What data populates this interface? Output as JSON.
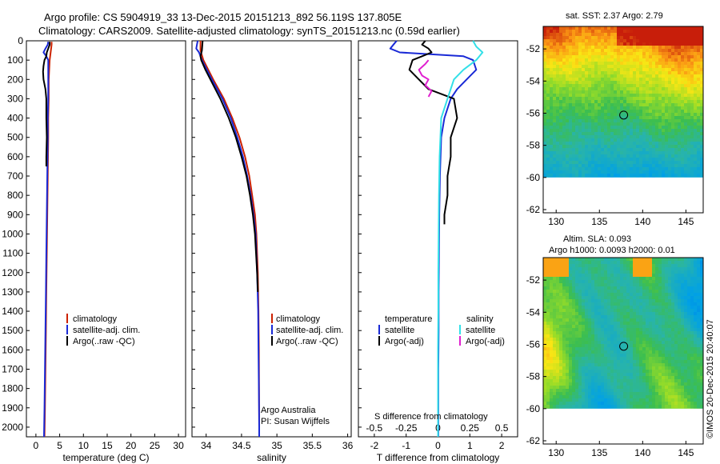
{
  "header": {
    "title_line1": "Argo profile: CS 5904919_33 13-Dec-2015 20151213_892 56.119S 137.805E",
    "title_line2": "Climatology: CARS2009. Satellite-adjusted climatology: synTS_20151213.nc (0.59d earlier)"
  },
  "colors": {
    "climatology": "#cc2200",
    "satellite": "#1a2ad6",
    "argo": "#000000",
    "satellite_salinity": "#33e0e8",
    "argo_salinity": "#e020d0"
  },
  "chart_data": [
    {
      "id": "temperature",
      "type": "line",
      "xlabel": "temperature (deg C)",
      "ylabel": "",
      "xlim": [
        -2,
        31.5
      ],
      "ylim": [
        2050,
        0
      ],
      "xticks": [
        0,
        5,
        10,
        15,
        20,
        25,
        30
      ],
      "yticks": [
        0,
        100,
        200,
        300,
        400,
        500,
        600,
        700,
        800,
        900,
        1000,
        1100,
        1200,
        1300,
        1400,
        1500,
        1600,
        1700,
        1800,
        1900,
        2000
      ],
      "legend": [
        "climatology",
        "satellite-adj. clim.",
        "Argo(..raw -QC)"
      ],
      "legend_position": "lower-center",
      "series": [
        {
          "name": "climatology",
          "color_key": "climatology",
          "y": [
            5,
            20,
            40,
            60,
            80,
            100,
            150,
            200,
            300,
            400,
            500,
            700,
            900,
            1100,
            1300,
            1500,
            1700,
            1900,
            2050
          ],
          "x": [
            3.3,
            3.3,
            3.2,
            3.1,
            3.0,
            2.9,
            2.8,
            2.7,
            2.7,
            2.6,
            2.6,
            2.5,
            2.4,
            2.3,
            2.2,
            2.1,
            2.0,
            1.9,
            1.8
          ]
        },
        {
          "name": "satellite-adj. clim.",
          "color_key": "satellite",
          "y": [
            5,
            20,
            40,
            60,
            80,
            100,
            150,
            200,
            300,
            400,
            500,
            700,
            900,
            1100,
            1300,
            1500,
            1700,
            1900,
            2050
          ],
          "x": [
            2.6,
            2.5,
            2.0,
            1.6,
            2.2,
            2.6,
            2.6,
            2.6,
            2.6,
            2.5,
            2.5,
            2.4,
            2.3,
            2.2,
            2.1,
            2.0,
            1.9,
            1.8,
            1.7
          ]
        },
        {
          "name": "Argo(..raw -QC)",
          "color_key": "argo",
          "y": [
            5,
            20,
            40,
            60,
            80,
            100,
            130,
            160,
            200,
            250,
            300,
            400,
            500,
            600,
            650
          ],
          "x": [
            2.9,
            2.9,
            2.6,
            2.3,
            2.2,
            1.8,
            1.6,
            1.5,
            1.6,
            2.0,
            2.2,
            2.2,
            2.3,
            2.2,
            2.2
          ]
        }
      ]
    },
    {
      "id": "salinity",
      "type": "line",
      "xlabel": "salinity",
      "ylabel": "",
      "xlim": [
        33.8,
        36.05
      ],
      "ylim": [
        2050,
        0
      ],
      "xticks": [
        34,
        34.5,
        35,
        35.5,
        36
      ],
      "xtick_labels": [
        "34",
        "34.5",
        "35",
        "35.5",
        "36"
      ],
      "legend": [
        "climatology",
        "satellite-adj. clim.",
        "Argo(..raw -QC)"
      ],
      "legend_position": "lower-right",
      "annotations": [
        "Argo Australia",
        "PI: Susan Wijffels"
      ],
      "series": [
        {
          "name": "climatology",
          "color_key": "climatology",
          "y": [
            0,
            50,
            100,
            200,
            300,
            400,
            500,
            600,
            700,
            800,
            900,
            1000,
            1200,
            1400,
            1600,
            1800,
            2000,
            2050
          ],
          "x": [
            33.92,
            33.92,
            33.96,
            34.1,
            34.25,
            34.37,
            34.47,
            34.55,
            34.61,
            34.65,
            34.69,
            34.71,
            34.73,
            34.74,
            34.745,
            34.748,
            34.75,
            34.75
          ]
        },
        {
          "name": "satellite-adj. clim.",
          "color_key": "satellite",
          "y": [
            0,
            40,
            60,
            100,
            200,
            300,
            400,
            500,
            600,
            700,
            800,
            900,
            1000,
            1200,
            1400,
            1600,
            1800,
            2000,
            2050
          ],
          "x": [
            33.88,
            33.86,
            33.9,
            33.94,
            34.08,
            34.23,
            34.35,
            34.44,
            34.52,
            34.58,
            34.63,
            34.67,
            34.7,
            34.72,
            34.735,
            34.74,
            34.745,
            34.75,
            34.75
          ]
        },
        {
          "name": "Argo(..raw -QC)",
          "color_key": "argo",
          "y": [
            0,
            50,
            80,
            100,
            150,
            200,
            300,
            400,
            500,
            600,
            700,
            800,
            900,
            1000,
            1200,
            1300
          ],
          "x": [
            33.95,
            33.94,
            33.92,
            33.93,
            33.99,
            34.06,
            34.2,
            34.32,
            34.42,
            34.5,
            34.57,
            34.62,
            34.66,
            34.69,
            34.72,
            34.73
          ]
        }
      ]
    },
    {
      "id": "difference",
      "type": "line",
      "xlabel": "T difference from climatology",
      "x2label": "S difference from climatology",
      "xlim": [
        -2.5,
        2.5
      ],
      "ylim": [
        2050,
        0
      ],
      "xticks": [
        -2,
        -1,
        0,
        1,
        2
      ],
      "x2ticks": [
        -0.5,
        -0.25,
        0,
        0.25,
        0.5
      ],
      "legend_groups": [
        {
          "title": "temperature",
          "entries": [
            "satellite",
            "Argo(-adj)"
          ]
        },
        {
          "title": "salinity",
          "entries": [
            "satellite",
            "Argo(-adj)"
          ]
        }
      ],
      "series": [
        {
          "name": "temperature satellite",
          "color_key": "satellite",
          "y": [
            0,
            20,
            40,
            60,
            80,
            100,
            150,
            200,
            250,
            300,
            400,
            500,
            700,
            900,
            1100,
            1300,
            1500,
            1700,
            1900,
            2050
          ],
          "x": [
            -1.3,
            -1.4,
            -1.5,
            -1.2,
            0.8,
            1.1,
            1.2,
            0.9,
            0.6,
            0.4,
            0.2,
            0.1,
            0.06,
            0.04,
            0.03,
            0.02,
            0.02,
            0.01,
            0.01,
            0.01
          ]
        },
        {
          "name": "temperature Argo(-adj)",
          "color_key": "argo",
          "y": [
            0,
            20,
            40,
            60,
            80,
            100,
            150,
            200,
            250,
            300,
            400,
            500,
            600,
            700,
            800,
            900,
            950
          ],
          "x": [
            -0.4,
            -0.5,
            -0.3,
            -0.2,
            -0.5,
            -0.8,
            -0.9,
            -0.6,
            -0.3,
            0.5,
            0.6,
            0.4,
            0.4,
            0.3,
            0.3,
            0.2,
            0.2
          ]
        },
        {
          "name": "salinity satellite",
          "color_key": "satellite_salinity",
          "y": [
            0,
            30,
            60,
            100,
            150,
            200,
            300,
            400,
            600,
            800,
            1000,
            1200,
            1400,
            1600,
            1800,
            2000,
            2050
          ],
          "x": [
            1.1,
            1.2,
            1.4,
            1.2,
            0.8,
            0.5,
            0.3,
            0.1,
            0.05,
            0.03,
            0.02,
            0.01,
            0.01,
            0.0,
            0.0,
            0.0,
            0.0
          ]
        },
        {
          "name": "salinity Argo(-adj)",
          "color_key": "argo_salinity",
          "y": [
            100,
            120,
            150,
            180,
            200,
            230,
            260,
            290
          ],
          "x": [
            -0.3,
            -0.4,
            -0.6,
            -0.5,
            -0.3,
            -0.4,
            -0.2,
            -0.3
          ]
        }
      ]
    },
    {
      "id": "sst-map",
      "type": "heatmap",
      "title": "sat. SST: 2.37 Argo: 2.79",
      "xlim": [
        128.5,
        147
      ],
      "ylim": [
        -62.2,
        -50.6
      ],
      "xticks": [
        130,
        135,
        140,
        145
      ],
      "yticks": [
        -52,
        -54,
        -56,
        -58,
        -60,
        -62
      ],
      "marker": {
        "lon": 137.805,
        "lat": -56.119
      }
    },
    {
      "id": "sla-map",
      "type": "heatmap",
      "title_line1": "Altim. SLA: 0.093",
      "title_line2": "Argo h1000: 0.0093 h2000: 0.01",
      "xlim": [
        128.5,
        147
      ],
      "ylim": [
        -62.2,
        -50.6
      ],
      "xticks": [
        130,
        135,
        140,
        145
      ],
      "yticks": [
        -52,
        -54,
        -56,
        -58,
        -60,
        -62
      ],
      "marker": {
        "lon": 137.805,
        "lat": -56.119
      }
    }
  ],
  "footer": {
    "stamp": "©IMOS 20-Dec-2015 20:40:07"
  }
}
